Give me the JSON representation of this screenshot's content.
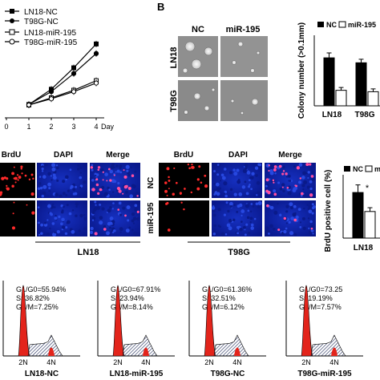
{
  "panel_a": {
    "legend": [
      "LN18-NC",
      "T98G-NC",
      "LN18-miR-195",
      "T98G-miR-195"
    ],
    "x_ticks": [
      "0",
      "1",
      "2",
      "3",
      "4"
    ],
    "x_unit": "Day"
  },
  "panel_b": {
    "letter": "B",
    "col_labels": [
      "NC",
      "miR-195"
    ],
    "row_labels": [
      "LN18",
      "T98G"
    ]
  },
  "colony_chart": {
    "legend": [
      "NC",
      "miR-195"
    ],
    "ylabel": "Colony number (>0.1mm)",
    "categories": [
      "LN18",
      "T98G"
    ],
    "star": "*"
  },
  "brdu_panel": {
    "col_labels_left": [
      "BrdU",
      "DAPI",
      "Merge"
    ],
    "col_labels_right": [
      "BrdU",
      "DAPI",
      "Merge"
    ],
    "row_labels": [
      "NC",
      "miR-195"
    ],
    "group_left": "LN18",
    "group_right": "T98G"
  },
  "brdu_chart": {
    "legend": [
      "NC",
      "mi"
    ],
    "ylabel": "BrdU positive cell (%)",
    "categories": [
      "LN18"
    ],
    "star": "*"
  },
  "cell_cycle": {
    "x_ticks": [
      "2N",
      "4N"
    ],
    "panels": [
      {
        "label": "LN18-NC",
        "g1": "G1/G0=55.94%",
        "s": "S=36.82%",
        "g2": "G2/M=7.25%"
      },
      {
        "label": "LN18-miR-195",
        "g1": "G1/G0=67.91%",
        "s": "S=23.94%",
        "g2": "G2/M=8.14%"
      },
      {
        "label": "T98G-NC",
        "g1": "G1/G0=61.36%",
        "s": "S=32.51%",
        "g2": "G2/M=6.12%"
      },
      {
        "label": "T98G-miR-195",
        "g1": "G1/G0=73.25",
        "s": "S=19.19%",
        "g2": "G2/M=7.57%"
      }
    ]
  },
  "colors": {
    "red_peak": "#e3241b",
    "hatch": "#1e2a5a",
    "dapi_blue": "#0b1f9c",
    "dapi_dark": "#061070",
    "brdu_red": "#ff2a2a",
    "photo_gray": "#8f8f8f"
  },
  "chart_data": [
    {
      "type": "line",
      "x": [
        0,
        1,
        2,
        3,
        4
      ],
      "xlabel": "Day",
      "series": [
        {
          "name": "LN18-NC",
          "values": [
            null,
            0.28,
            0.6,
            1.05,
            1.55
          ]
        },
        {
          "name": "T98G-NC",
          "values": [
            null,
            0.28,
            0.55,
            0.93,
            1.35
          ]
        },
        {
          "name": "LN18-miR-195",
          "values": [
            null,
            0.27,
            0.42,
            0.58,
            0.78
          ]
        },
        {
          "name": "T98G-miR-195",
          "values": [
            null,
            0.27,
            0.4,
            0.55,
            0.73
          ]
        }
      ],
      "ylim": [
        0,
        1.8
      ],
      "legend": "top-left"
    },
    {
      "type": "bar",
      "categories": [
        "LN18",
        "T98G"
      ],
      "series": [
        {
          "name": "NC",
          "values": [
            68,
            61
          ],
          "errors": [
            7,
            5
          ]
        },
        {
          "name": "miR-195",
          "values": [
            22,
            20
          ],
          "errors": [
            4,
            4
          ]
        }
      ],
      "ylabel": "Colony number (>0.1mm)",
      "ylim": [
        0,
        100
      ],
      "legend": "top"
    },
    {
      "type": "bar",
      "categories": [
        "LN18"
      ],
      "series": [
        {
          "name": "NC",
          "values": [
            36
          ],
          "errors": [
            6
          ]
        },
        {
          "name": "mi",
          "values": [
            21
          ],
          "errors": [
            3
          ]
        }
      ],
      "ylabel": "BrdU positive cell (%)",
      "ylim": [
        0,
        50
      ],
      "legend": "top"
    }
  ]
}
